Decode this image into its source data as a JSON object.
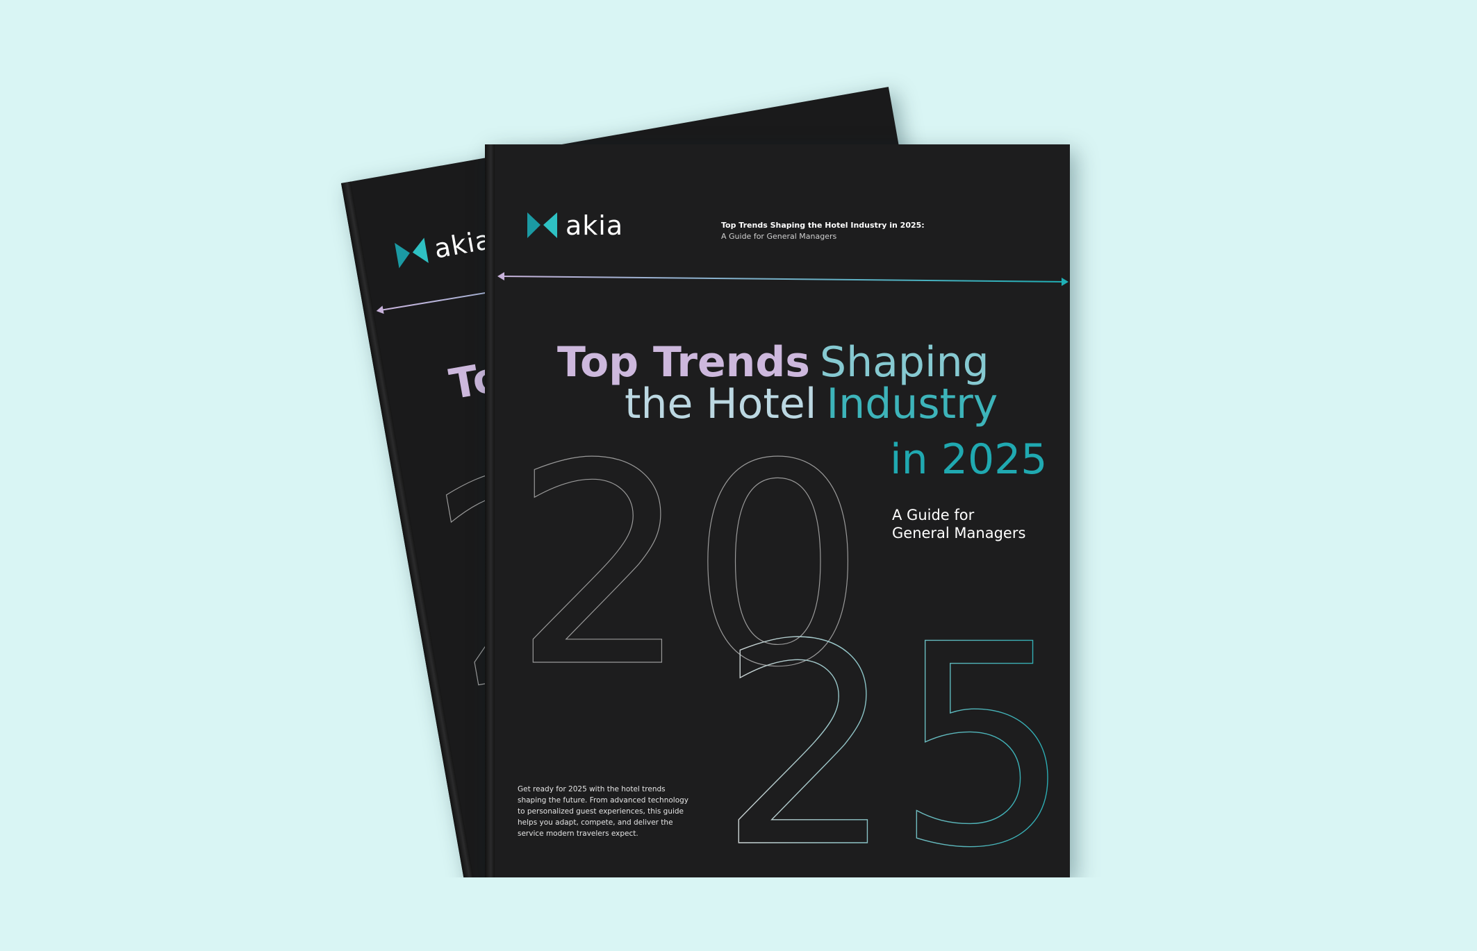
{
  "brand": "akia",
  "header": {
    "title": "Top Trends Shaping the Hotel Industry in 2025:",
    "subtitle": "A Guide for General Managers"
  },
  "title": [
    "Top Trends",
    "Shaping",
    "the Hotel",
    "Industry",
    "in 2025"
  ],
  "guide": [
    "A Guide for",
    "General Managers"
  ],
  "big_year": [
    "20",
    "25"
  ],
  "blurb": [
    "Get ready for 2025 with the hotel trends",
    "shaping the future. From advanced technology",
    "to personalized guest experiences, this guide",
    "helps you adapt, compete, and deliver the",
    "service modern travelers expect."
  ]
}
